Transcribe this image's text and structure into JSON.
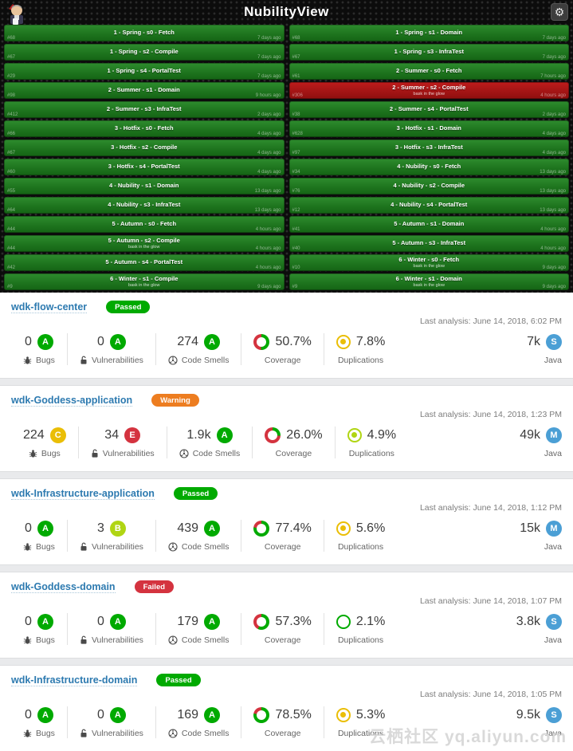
{
  "monitor": {
    "title": "NubilityView",
    "settings_icon": "gear",
    "tiles": [
      {
        "label": "1 - Spring - s0 - Fetch",
        "status": "success",
        "build": "#68",
        "ago": "7 days ago"
      },
      {
        "label": "1 - Spring - s1 - Domain",
        "status": "success",
        "build": "#68",
        "ago": "7 days ago"
      },
      {
        "label": "1 - Spring - s2 - Compile",
        "status": "success",
        "build": "#67",
        "ago": "7 days ago"
      },
      {
        "label": "1 - Spring - s3 - InfraTest",
        "status": "success",
        "build": "#67",
        "ago": "7 days ago"
      },
      {
        "label": "1 - Spring - s4 - PortalTest",
        "status": "success",
        "build": "#29",
        "ago": "7 days ago"
      },
      {
        "label": "2 - Summer - s0 - Fetch",
        "status": "success",
        "build": "#61",
        "ago": "7 hours ago"
      },
      {
        "label": "2 - Summer - s1 - Domain",
        "status": "success",
        "build": "#98",
        "ago": "9 hours ago"
      },
      {
        "label": "2 - Summer - s2 - Compile",
        "status": "failure",
        "build": "#306",
        "ago": "4 hours ago",
        "note": "bask in the glow"
      },
      {
        "label": "2 - Summer - s3 - InfraTest",
        "status": "success",
        "build": "#412",
        "ago": "2 days ago"
      },
      {
        "label": "2 - Summer - s4 - PortalTest",
        "status": "success",
        "build": "#38",
        "ago": "2 days ago"
      },
      {
        "label": "3 - Hotfix - s0 - Fetch",
        "status": "success",
        "build": "#66",
        "ago": "4 days ago"
      },
      {
        "label": "3 - Hotfix - s1 - Domain",
        "status": "success",
        "build": "#628",
        "ago": "4 days ago"
      },
      {
        "label": "3 - Hotfix - s2 - Compile",
        "status": "success",
        "build": "#67",
        "ago": "4 days ago"
      },
      {
        "label": "3 - Hotfix - s3 - InfraTest",
        "status": "success",
        "build": "#97",
        "ago": "4 days ago"
      },
      {
        "label": "3 - Hotfix - s4 - PortalTest",
        "status": "success",
        "build": "#60",
        "ago": "4 days ago"
      },
      {
        "label": "4 - Nubility - s0 - Fetch",
        "status": "success",
        "build": "#34",
        "ago": "13 days ago"
      },
      {
        "label": "4 - Nubility - s1 - Domain",
        "status": "success",
        "build": "#55",
        "ago": "13 days ago"
      },
      {
        "label": "4 - Nubility - s2 - Compile",
        "status": "success",
        "build": "#76",
        "ago": "13 days ago"
      },
      {
        "label": "4 - Nubility - s3 - InfraTest",
        "status": "success",
        "build": "#64",
        "ago": "13 days ago"
      },
      {
        "label": "4 - Nubility - s4 - PortalTest",
        "status": "success",
        "build": "#12",
        "ago": "13 days ago"
      },
      {
        "label": "5 - Autumn - s0 - Fetch",
        "status": "success",
        "build": "#44",
        "ago": "4 hours ago"
      },
      {
        "label": "5 - Autumn - s1 - Domain",
        "status": "success",
        "build": "#41",
        "ago": "4 hours ago"
      },
      {
        "label": "5 - Autumn - s2 - Compile",
        "status": "success",
        "build": "#44",
        "ago": "4 hours ago",
        "note": "bask in the glow"
      },
      {
        "label": "5 - Autumn - s3 - InfraTest",
        "status": "success",
        "build": "#40",
        "ago": "4 hours ago"
      },
      {
        "label": "5 - Autumn - s4 - PortalTest",
        "status": "success",
        "build": "#42",
        "ago": "4 hours ago"
      },
      {
        "label": "6 - Winter - s0 - Fetch",
        "status": "success",
        "build": "#10",
        "ago": "9 days ago",
        "note": "bask in the glow"
      },
      {
        "label": "6 - Winter - s1 - Compile",
        "status": "success",
        "build": "#9",
        "ago": "9 days ago",
        "note": "bask in the glow"
      },
      {
        "label": "6 - Winter - s1 - Domain",
        "status": "success",
        "build": "#9",
        "ago": "9 days ago",
        "note": "bask in the glow"
      }
    ]
  },
  "projects": {
    "labels": {
      "bugs": "Bugs",
      "vulnerabilities": "Vulnerabilities",
      "code_smells": "Code Smells",
      "coverage": "Coverage",
      "duplications": "Duplications"
    },
    "items": [
      {
        "name": "wdk-flow-center",
        "badge": "Passed",
        "last_analysis": "Last analysis: June 14, 2018, 6:02 PM",
        "bugs": {
          "value": "0",
          "rating": "A"
        },
        "vulnerabilities": {
          "value": "0",
          "rating": "A"
        },
        "code_smells": {
          "value": "274",
          "rating": "A"
        },
        "coverage": {
          "value": "50.7%",
          "pct": 50.7
        },
        "duplications": {
          "value": "7.8%",
          "color": "#eabe06",
          "dot": true
        },
        "size": {
          "value": "7k",
          "letter": "S"
        },
        "language": "Java"
      },
      {
        "name": "wdk-Goddess-application",
        "badge": "Warning",
        "last_analysis": "Last analysis: June 14, 2018, 1:23 PM",
        "bugs": {
          "value": "224",
          "rating": "C"
        },
        "vulnerabilities": {
          "value": "34",
          "rating": "E"
        },
        "code_smells": {
          "value": "1.9k",
          "rating": "A"
        },
        "coverage": {
          "value": "26.0%",
          "pct": 26.0
        },
        "duplications": {
          "value": "4.9%",
          "color": "#b0d513",
          "dot": true
        },
        "size": {
          "value": "49k",
          "letter": "M"
        },
        "language": "Java"
      },
      {
        "name": "wdk-Infrastructure-application",
        "badge": "Passed",
        "last_analysis": "Last analysis: June 14, 2018, 1:12 PM",
        "bugs": {
          "value": "0",
          "rating": "A"
        },
        "vulnerabilities": {
          "value": "3",
          "rating": "B"
        },
        "code_smells": {
          "value": "439",
          "rating": "A"
        },
        "coverage": {
          "value": "77.4%",
          "pct": 77.4
        },
        "duplications": {
          "value": "5.6%",
          "color": "#eabe06",
          "dot": true
        },
        "size": {
          "value": "15k",
          "letter": "M"
        },
        "language": "Java"
      },
      {
        "name": "wdk-Goddess-domain",
        "badge": "Failed",
        "last_analysis": "Last analysis: June 14, 2018, 1:07 PM",
        "bugs": {
          "value": "0",
          "rating": "A"
        },
        "vulnerabilities": {
          "value": "0",
          "rating": "A"
        },
        "code_smells": {
          "value": "179",
          "rating": "A"
        },
        "coverage": {
          "value": "57.3%",
          "pct": 57.3
        },
        "duplications": {
          "value": "2.1%",
          "color": "#00aa00",
          "dot": false
        },
        "size": {
          "value": "3.8k",
          "letter": "S"
        },
        "language": "Java"
      },
      {
        "name": "wdk-Infrastructure-domain",
        "badge": "Passed",
        "last_analysis": "Last analysis: June 14, 2018, 1:05 PM",
        "bugs": {
          "value": "0",
          "rating": "A"
        },
        "vulnerabilities": {
          "value": "0",
          "rating": "A"
        },
        "code_smells": {
          "value": "169",
          "rating": "A"
        },
        "coverage": {
          "value": "78.5%",
          "pct": 78.5
        },
        "duplications": {
          "value": "5.3%",
          "color": "#eabe06",
          "dot": true
        },
        "size": {
          "value": "9.5k",
          "letter": "S"
        },
        "language": "Java"
      }
    ]
  },
  "watermark": "云栖社区 yq.aliyun.com",
  "colors": {
    "ratings": {
      "A": "#00aa00",
      "B": "#b0d513",
      "C": "#eabe06",
      "D": "#ed7d20",
      "E": "#d4333f"
    },
    "badge": {
      "Passed": "#00aa00",
      "Warning": "#ed7d20",
      "Failed": "#d4333f"
    },
    "size_badge": "#4b9fd5",
    "coverage_covered": "#00aa00",
    "coverage_uncovered": "#d4333f",
    "tile_success": "#1e731d",
    "tile_failure": "#a81515"
  }
}
